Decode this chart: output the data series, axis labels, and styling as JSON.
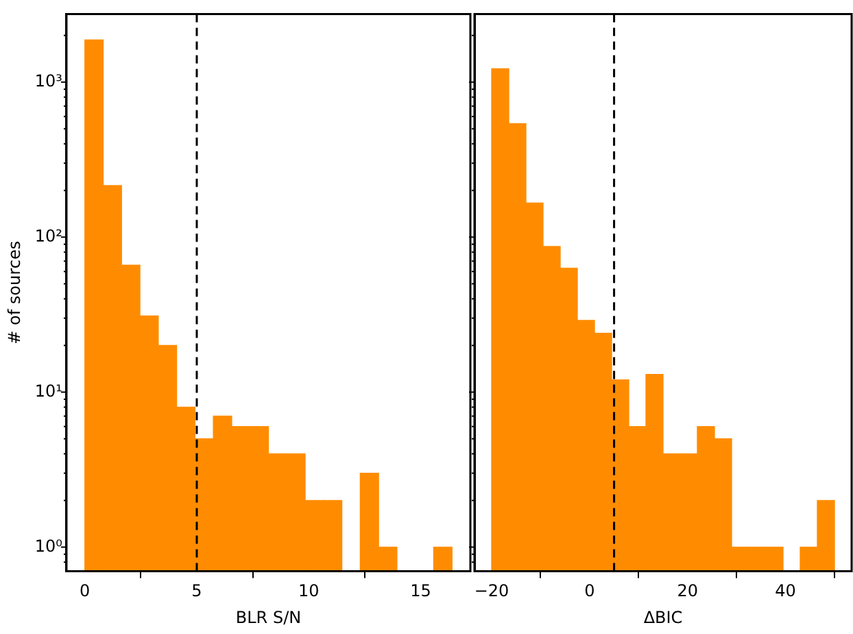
{
  "chart_data": [
    {
      "type": "histogram",
      "xlabel": "BLR S/N",
      "ylabel": "# of sources",
      "color": "#ff8c00",
      "log": "y",
      "grid": false,
      "legend": false,
      "bins": [
        0,
        0.82,
        1.64,
        2.46,
        3.28,
        4.1,
        4.92,
        5.74,
        6.56,
        7.38,
        8.2,
        9.02,
        9.84,
        10.66,
        11.48,
        12.3,
        13.12,
        13.94,
        14.76,
        15.58,
        16.4
      ],
      "values": [
        1870,
        215,
        66,
        31,
        20,
        8,
        5,
        7,
        6,
        6,
        4,
        4,
        2,
        2,
        null,
        3,
        1,
        null,
        null,
        1
      ],
      "xlim": [
        -0.82,
        17.22
      ],
      "xticks": [
        0,
        5,
        10,
        15
      ],
      "ylim": [
        0.7,
        2750
      ],
      "yticks": [
        {
          "value": 0.8,
          "label": null
        },
        {
          "value": 0.9,
          "label": null
        },
        {
          "value": 1,
          "label": "10⁰"
        },
        {
          "value": 2,
          "label": null
        },
        {
          "value": 3,
          "label": null
        },
        {
          "value": 4,
          "label": null
        },
        {
          "value": 5,
          "label": null
        },
        {
          "value": 6,
          "label": null
        },
        {
          "value": 7,
          "label": null
        },
        {
          "value": 8,
          "label": null
        },
        {
          "value": 9,
          "label": null
        },
        {
          "value": 10,
          "label": "10¹"
        },
        {
          "value": 20,
          "label": null
        },
        {
          "value": 30,
          "label": null
        },
        {
          "value": 40,
          "label": null
        },
        {
          "value": 50,
          "label": null
        },
        {
          "value": 60,
          "label": null
        },
        {
          "value": 70,
          "label": null
        },
        {
          "value": 80,
          "label": null
        },
        {
          "value": 90,
          "label": null
        },
        {
          "value": 100,
          "label": "10²"
        },
        {
          "value": 200,
          "label": null
        },
        {
          "value": 300,
          "label": null
        },
        {
          "value": 400,
          "label": null
        },
        {
          "value": 500,
          "label": null
        },
        {
          "value": 600,
          "label": null
        },
        {
          "value": 700,
          "label": null
        },
        {
          "value": 800,
          "label": null
        },
        {
          "value": 900,
          "label": null
        },
        {
          "value": 1000,
          "label": "10³"
        },
        {
          "value": 2000,
          "label": null
        }
      ],
      "ref_lines": [
        {
          "axis": "x",
          "value": 5,
          "color": "#000000",
          "line_style": "dashed"
        }
      ]
    },
    {
      "type": "histogram",
      "xlabel": "ΔBIC",
      "color": "#ff8c00",
      "log": "y",
      "grid": false,
      "legend": false,
      "tick_labels": "x",
      "bins": [
        -20,
        -16.5,
        -13,
        -9.5,
        -6,
        -2.5,
        1,
        4.5,
        8,
        11.5,
        15,
        18.5,
        22,
        25.5,
        29,
        32.5,
        36,
        39.5,
        43,
        46.5,
        50
      ],
      "values": [
        1220,
        540,
        166,
        87,
        63,
        29,
        24,
        12,
        6,
        13,
        4,
        4,
        6,
        5,
        1,
        1,
        1,
        null,
        1,
        2
      ],
      "xlim": [
        -23.5,
        53.5
      ],
      "xticks": [
        {
          "value": -20,
          "label": "−20"
        },
        0,
        20,
        40
      ],
      "ylim": [
        0.7,
        2750
      ],
      "yticks": [
        {
          "value": 0.8,
          "label": null
        },
        {
          "value": 0.9,
          "label": null
        },
        {
          "value": 1,
          "label": null
        },
        {
          "value": 2,
          "label": null
        },
        {
          "value": 3,
          "label": null
        },
        {
          "value": 4,
          "label": null
        },
        {
          "value": 5,
          "label": null
        },
        {
          "value": 6,
          "label": null
        },
        {
          "value": 7,
          "label": null
        },
        {
          "value": 8,
          "label": null
        },
        {
          "value": 9,
          "label": null
        },
        {
          "value": 10,
          "label": null
        },
        {
          "value": 20,
          "label": null
        },
        {
          "value": 30,
          "label": null
        },
        {
          "value": 40,
          "label": null
        },
        {
          "value": 50,
          "label": null
        },
        {
          "value": 60,
          "label": null
        },
        {
          "value": 70,
          "label": null
        },
        {
          "value": 80,
          "label": null
        },
        {
          "value": 90,
          "label": null
        },
        {
          "value": 100,
          "label": null
        },
        {
          "value": 200,
          "label": null
        },
        {
          "value": 300,
          "label": null
        },
        {
          "value": 400,
          "label": null
        },
        {
          "value": 500,
          "label": null
        },
        {
          "value": 600,
          "label": null
        },
        {
          "value": 700,
          "label": null
        },
        {
          "value": 800,
          "label": null
        },
        {
          "value": 900,
          "label": null
        },
        {
          "value": 1000,
          "label": null
        },
        {
          "value": 2000,
          "label": null
        }
      ],
      "ref_lines": [
        {
          "axis": "x",
          "value": 5,
          "color": "#000000",
          "line_style": "dashed"
        }
      ]
    }
  ]
}
